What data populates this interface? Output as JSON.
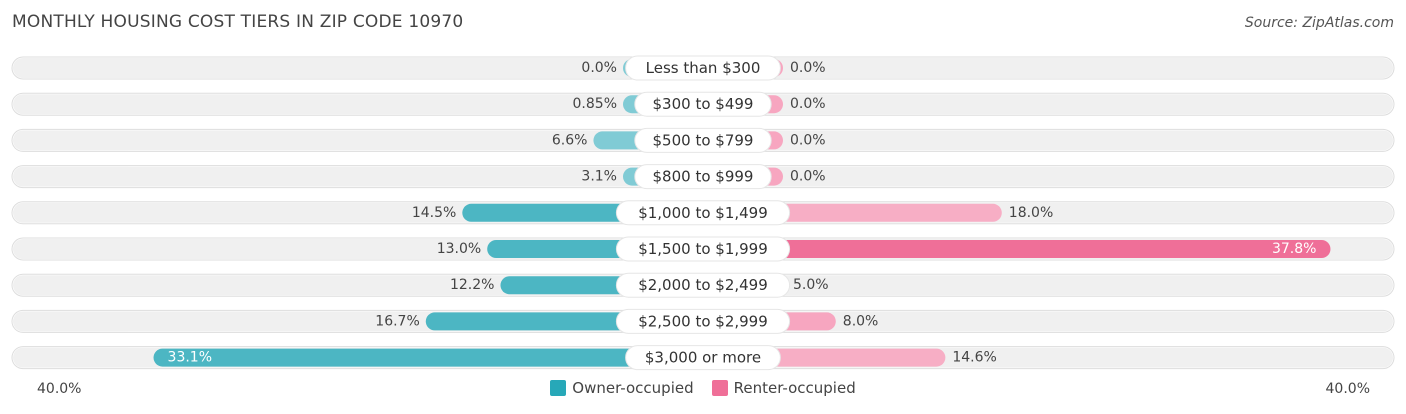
{
  "title": "MONTHLY HOUSING COST TIERS IN ZIP CODE 10970",
  "source": "Source: ZipAtlas.com",
  "axis": {
    "left_label": "40.0%",
    "right_label": "40.0%"
  },
  "legend": {
    "owner_label": "Owner-occupied",
    "renter_label": "Renter-occupied"
  },
  "colors": {
    "owner": "#5bbfcc",
    "owner_strong": "#27a8b8",
    "renter": "#f7a6c0",
    "renter_strong": "#ef6f98",
    "row_bg": "#f0f0f0"
  },
  "chart_data": {
    "type": "bar",
    "orientation": "horizontal-diverging",
    "categories": [
      "Less than $300",
      "$300 to $499",
      "$500 to $799",
      "$800 to $999",
      "$1,000 to $1,499",
      "$1,500 to $1,999",
      "$2,000 to $2,499",
      "$2,500 to $2,999",
      "$3,000 or more"
    ],
    "series": [
      {
        "name": "Owner-occupied",
        "values": [
          0.0,
          0.85,
          6.6,
          3.1,
          14.5,
          13.0,
          12.2,
          16.7,
          33.1
        ],
        "labels": [
          "0.0%",
          "0.85%",
          "6.6%",
          "3.1%",
          "14.5%",
          "13.0%",
          "12.2%",
          "16.7%",
          "33.1%"
        ]
      },
      {
        "name": "Renter-occupied",
        "values": [
          0.0,
          0.0,
          0.0,
          0.0,
          18.0,
          37.8,
          5.0,
          8.0,
          14.6
        ],
        "labels": [
          "0.0%",
          "0.0%",
          "0.0%",
          "0.0%",
          "18.0%",
          "37.8%",
          "5.0%",
          "8.0%",
          "14.6%"
        ]
      }
    ],
    "xlim": [
      -40,
      40
    ]
  }
}
